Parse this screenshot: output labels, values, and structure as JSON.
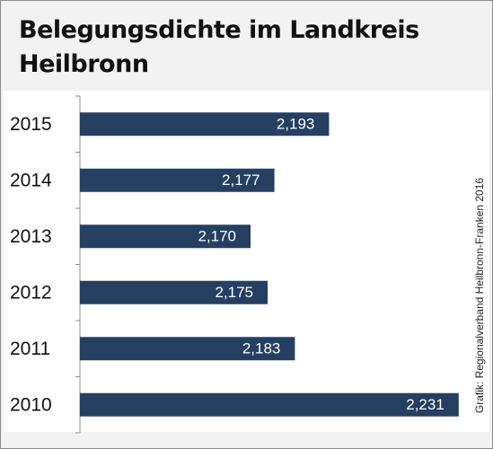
{
  "chart_data": {
    "type": "barh",
    "title": "Belegungsdichte im Landkreis Heilbronn",
    "source": "Grafik: Regionalverband Heilbronn-Franken 2016",
    "categories": [
      "2015",
      "2014",
      "2013",
      "2012",
      "2011",
      "2010"
    ],
    "values": [
      2.193,
      2.177,
      2.17,
      2.175,
      2.183,
      2.231
    ],
    "value_labels": [
      "2,193",
      "2,177",
      "2,170",
      "2,175",
      "2,183",
      "2,231"
    ],
    "color": "#243f60",
    "xlim": [
      2.12,
      2.235
    ]
  }
}
